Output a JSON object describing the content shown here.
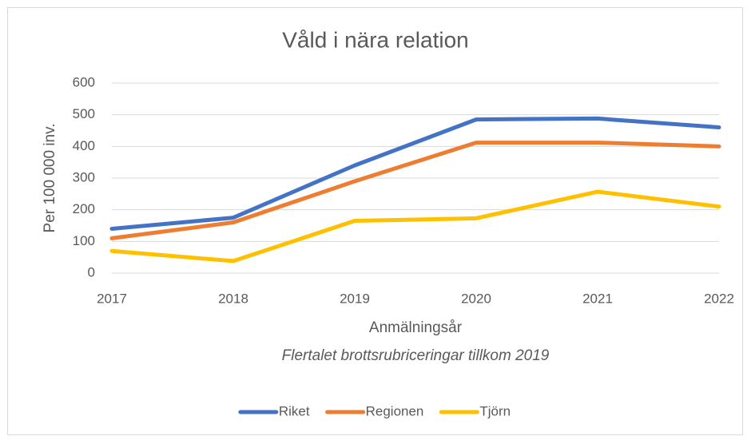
{
  "chart_data": {
    "type": "line",
    "title": "Våld i nära relation",
    "x_label": "Anmälningsår",
    "y_label": "Per 100 000 inv.",
    "annotation": "Flertalet brottsrubriceringar tillkom 2019",
    "x": [
      2017,
      2018,
      2019,
      2020,
      2021,
      2022
    ],
    "xlim": [
      2017,
      2022
    ],
    "xticks": [
      2017,
      2018,
      2019,
      2020,
      2021,
      2022
    ],
    "ylim": [
      0,
      600
    ],
    "yticks": [
      0,
      100,
      200,
      300,
      400,
      500,
      600
    ],
    "grid": true,
    "legend": "bottom",
    "series": [
      {
        "name": "Riket",
        "color": "#4472c4",
        "values": [
          140,
          175,
          340,
          485,
          488,
          460
        ]
      },
      {
        "name": "Regionen",
        "color": "#ed7d31",
        "values": [
          110,
          160,
          290,
          412,
          412,
          400
        ]
      },
      {
        "name": "Tjörn",
        "color": "#ffc000",
        "values": [
          70,
          38,
          165,
          173,
          257,
          210
        ]
      }
    ]
  }
}
